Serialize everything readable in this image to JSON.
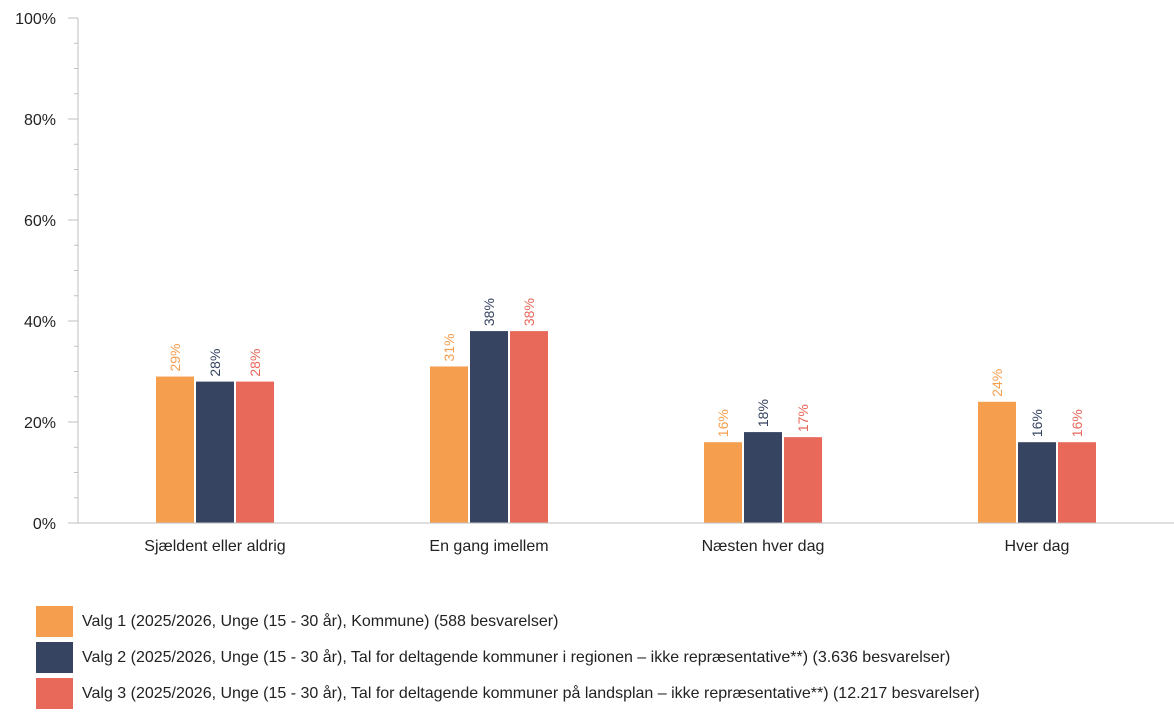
{
  "chart_data": {
    "type": "bar",
    "categories": [
      "Sjældent eller aldrig",
      "En gang imellem",
      "Næsten hver dag",
      "Hver dag"
    ],
    "series": [
      {
        "name": "Valg 1 (2025/2026, Unge (15 - 30 år), Kommune) (588 besvarelser)",
        "color": "#F59E4E",
        "values": [
          29,
          31,
          16,
          24
        ],
        "labels": [
          "29%",
          "31%",
          "16%",
          "24%"
        ]
      },
      {
        "name": "Valg 2 (2025/2026, Unge (15 - 30 år), Tal for deltagende kommuner i regionen – ikke repræsentative**) (3.636 besvarelser)",
        "color": "#364462",
        "values": [
          28,
          38,
          18,
          16
        ],
        "labels": [
          "28%",
          "38%",
          "18%",
          "16%"
        ]
      },
      {
        "name": "Valg 3 (2025/2026, Unge (15 - 30 år), Tal for deltagende kommuner på landsplan – ikke repræsentative**) (12.217 besvarelser)",
        "color": "#E8685A",
        "values": [
          28,
          38,
          17,
          16
        ],
        "labels": [
          "28%",
          "38%",
          "17%",
          "16%"
        ]
      }
    ],
    "ylim": [
      0,
      100
    ],
    "yticks": [
      "0%",
      "20%",
      "40%",
      "60%",
      "80%",
      "100%"
    ],
    "grid": false,
    "legend_position": "bottom"
  }
}
